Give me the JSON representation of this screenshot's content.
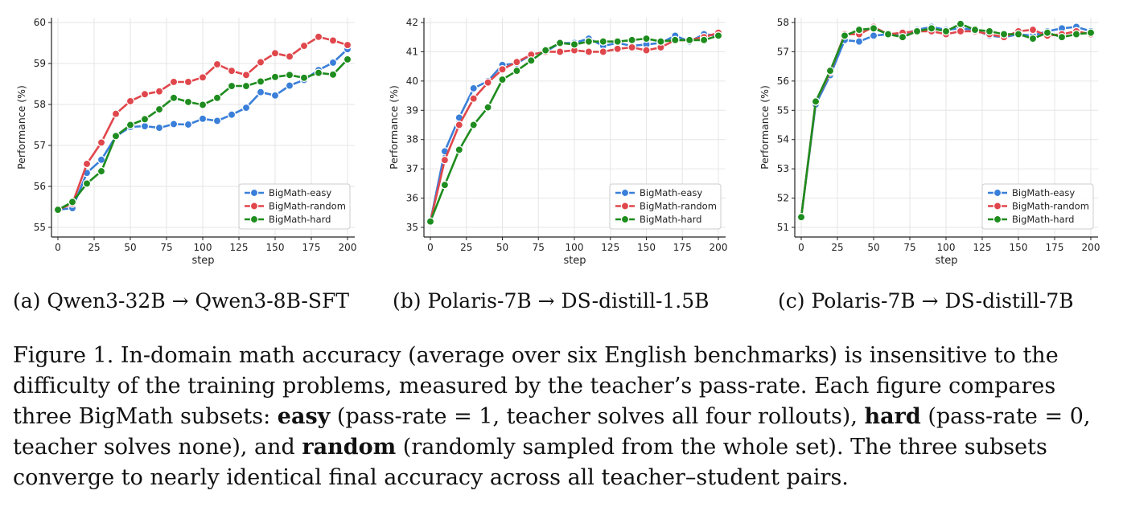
{
  "chart_data": [
    {
      "type": "line",
      "subcaption": "(a) Qwen3-32B → Qwen3-8B-SFT",
      "xlabel": "step",
      "ylabel": "Performance (%)",
      "xlim": [
        0,
        200
      ],
      "ylim": [
        55,
        60
      ],
      "xticks": [
        0,
        25,
        50,
        75,
        100,
        125,
        150,
        175,
        200
      ],
      "yticks": [
        55,
        56,
        57,
        58,
        59,
        60
      ],
      "grid": true,
      "legend_position": "lower-right",
      "x": [
        0,
        10,
        20,
        30,
        40,
        50,
        60,
        70,
        80,
        90,
        100,
        110,
        120,
        130,
        140,
        150,
        160,
        170,
        180,
        190,
        200
      ],
      "series": [
        {
          "name": "BigMath-easy",
          "color": "#3a7fd9",
          "values": [
            55.43,
            55.47,
            56.33,
            56.65,
            57.22,
            57.45,
            57.47,
            57.43,
            57.52,
            57.51,
            57.65,
            57.6,
            57.75,
            57.92,
            58.3,
            58.22,
            58.46,
            58.6,
            58.84,
            59.02,
            59.35
          ]
        },
        {
          "name": "BigMath-random",
          "color": "#e0474c",
          "values": [
            55.43,
            55.58,
            56.55,
            57.07,
            57.77,
            58.08,
            58.25,
            58.32,
            58.55,
            58.55,
            58.66,
            58.98,
            58.82,
            58.72,
            59.03,
            59.25,
            59.17,
            59.43,
            59.65,
            59.56,
            59.45
          ]
        },
        {
          "name": "BigMath-hard",
          "color": "#1e8c1e",
          "values": [
            55.43,
            55.62,
            56.07,
            56.37,
            57.23,
            57.5,
            57.64,
            57.88,
            58.16,
            58.06,
            57.99,
            58.16,
            58.45,
            58.45,
            58.56,
            58.67,
            58.72,
            58.65,
            58.77,
            58.73,
            59.1
          ]
        }
      ]
    },
    {
      "type": "line",
      "subcaption": "(b) Polaris-7B → DS-distill-1.5B",
      "xlabel": "step",
      "ylabel": "Performance (%)",
      "xlim": [
        0,
        200
      ],
      "ylim": [
        35,
        42
      ],
      "xticks": [
        0,
        25,
        50,
        75,
        100,
        125,
        150,
        175,
        200
      ],
      "yticks": [
        35,
        36,
        37,
        38,
        39,
        40,
        41,
        42
      ],
      "grid": true,
      "legend_position": "lower-right",
      "x": [
        0,
        10,
        20,
        30,
        40,
        50,
        60,
        70,
        80,
        90,
        100,
        110,
        120,
        130,
        140,
        150,
        160,
        170,
        180,
        190,
        200
      ],
      "series": [
        {
          "name": "BigMath-easy",
          "color": "#3a7fd9",
          "values": [
            35.2,
            37.6,
            38.75,
            39.75,
            40.0,
            40.55,
            40.6,
            40.9,
            41.0,
            41.3,
            41.3,
            41.45,
            41.2,
            41.3,
            41.2,
            41.25,
            41.3,
            41.55,
            41.35,
            41.6,
            41.55
          ]
        },
        {
          "name": "BigMath-random",
          "color": "#e0474c",
          "values": [
            35.2,
            37.3,
            38.5,
            39.4,
            39.95,
            40.4,
            40.65,
            40.9,
            41.0,
            41.0,
            41.05,
            41.0,
            41.0,
            41.1,
            41.15,
            41.05,
            41.15,
            41.4,
            41.4,
            41.5,
            41.65
          ]
        },
        {
          "name": "BigMath-hard",
          "color": "#1e8c1e",
          "values": [
            35.2,
            36.45,
            37.65,
            38.5,
            39.1,
            40.05,
            40.35,
            40.7,
            41.05,
            41.3,
            41.25,
            41.35,
            41.35,
            41.35,
            41.4,
            41.45,
            41.35,
            41.4,
            41.4,
            41.4,
            41.55
          ]
        }
      ]
    },
    {
      "type": "line",
      "subcaption": "(c) Polaris-7B → DS-distill-7B",
      "xlabel": "step",
      "ylabel": "Performance (%)",
      "xlim": [
        0,
        200
      ],
      "ylim": [
        51,
        58
      ],
      "xticks": [
        0,
        25,
        50,
        75,
        100,
        125,
        150,
        175,
        200
      ],
      "yticks": [
        51,
        52,
        53,
        54,
        55,
        56,
        57,
        58
      ],
      "grid": true,
      "legend_position": "lower-right",
      "x": [
        0,
        10,
        20,
        30,
        40,
        50,
        60,
        70,
        80,
        90,
        100,
        110,
        120,
        130,
        140,
        150,
        160,
        170,
        180,
        190,
        200
      ],
      "series": [
        {
          "name": "BigMath-easy",
          "color": "#3a7fd9",
          "values": [
            51.35,
            55.2,
            56.2,
            57.4,
            57.35,
            57.55,
            57.6,
            57.6,
            57.75,
            57.85,
            57.75,
            57.8,
            57.75,
            57.55,
            57.5,
            57.6,
            57.55,
            57.7,
            57.8,
            57.85,
            57.7
          ]
        },
        {
          "name": "BigMath-random",
          "color": "#e0474c",
          "values": [
            51.35,
            55.3,
            56.3,
            57.6,
            57.6,
            57.85,
            57.6,
            57.65,
            57.7,
            57.7,
            57.6,
            57.7,
            57.7,
            57.6,
            57.5,
            57.7,
            57.75,
            57.55,
            57.6,
            57.7,
            57.6
          ]
        },
        {
          "name": "BigMath-hard",
          "color": "#1e8c1e",
          "values": [
            51.35,
            55.3,
            56.35,
            57.55,
            57.75,
            57.8,
            57.6,
            57.5,
            57.7,
            57.8,
            57.7,
            57.95,
            57.75,
            57.7,
            57.6,
            57.6,
            57.45,
            57.65,
            57.5,
            57.6,
            57.65
          ]
        }
      ]
    }
  ],
  "caption": {
    "p1": "Figure 1. In-domain math accuracy (average over six English benchmarks) is insensitive to the difficulty of the training problems, measured by the teacher’s pass-rate. Each figure compares three BigMath subsets: ",
    "b1": "easy",
    "p2": " (pass-rate = 1, teacher solves all four rollouts), ",
    "b2": "hard",
    "p3": " (pass-rate = 0, teacher solves none), and ",
    "b3": "random",
    "p4": " (randomly sampled from the whole set). The three subsets converge to nearly identical final accuracy across all teacher–student pairs."
  }
}
